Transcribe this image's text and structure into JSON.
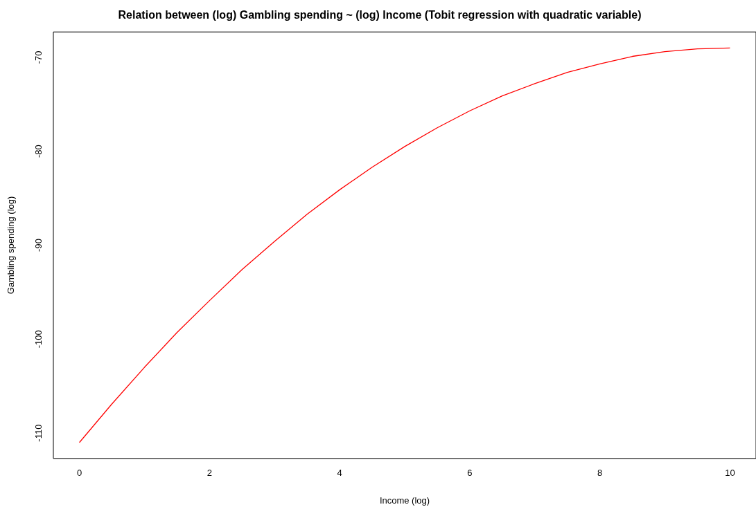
{
  "chart_data": {
    "type": "line",
    "title": "Relation between (log) Gambling spending ~ (log) Income (Tobit regression with quadratic variable)",
    "xlabel": "Income (log)",
    "ylabel": "Gambling spending (log)",
    "x": [
      0,
      0.5,
      1,
      1.5,
      2,
      2.5,
      3,
      3.5,
      4,
      4.5,
      5,
      5.5,
      6,
      6.5,
      7,
      7.5,
      8,
      8.5,
      9,
      9.5,
      10
    ],
    "series": [
      {
        "color": "#ff0000",
        "values": [
          -111,
          -106.9,
          -103.0,
          -99.3,
          -95.9,
          -92.6,
          -89.6,
          -86.7,
          -84.1,
          -81.7,
          -79.5,
          -77.5,
          -75.7,
          -74.1,
          -72.8,
          -71.6,
          -70.7,
          -69.9,
          -69.4,
          -69.1,
          -69.0
        ]
      }
    ],
    "xlim": [
      -0.4,
      10.4
    ],
    "ylim": [
      -112.7,
      -67.3
    ],
    "xticks": [
      0,
      2,
      4,
      6,
      8,
      10
    ],
    "yticks": [
      -110,
      -100,
      -90,
      -80,
      -70
    ],
    "grid": false,
    "legend": false,
    "marker": "none",
    "line_style": "solid"
  }
}
